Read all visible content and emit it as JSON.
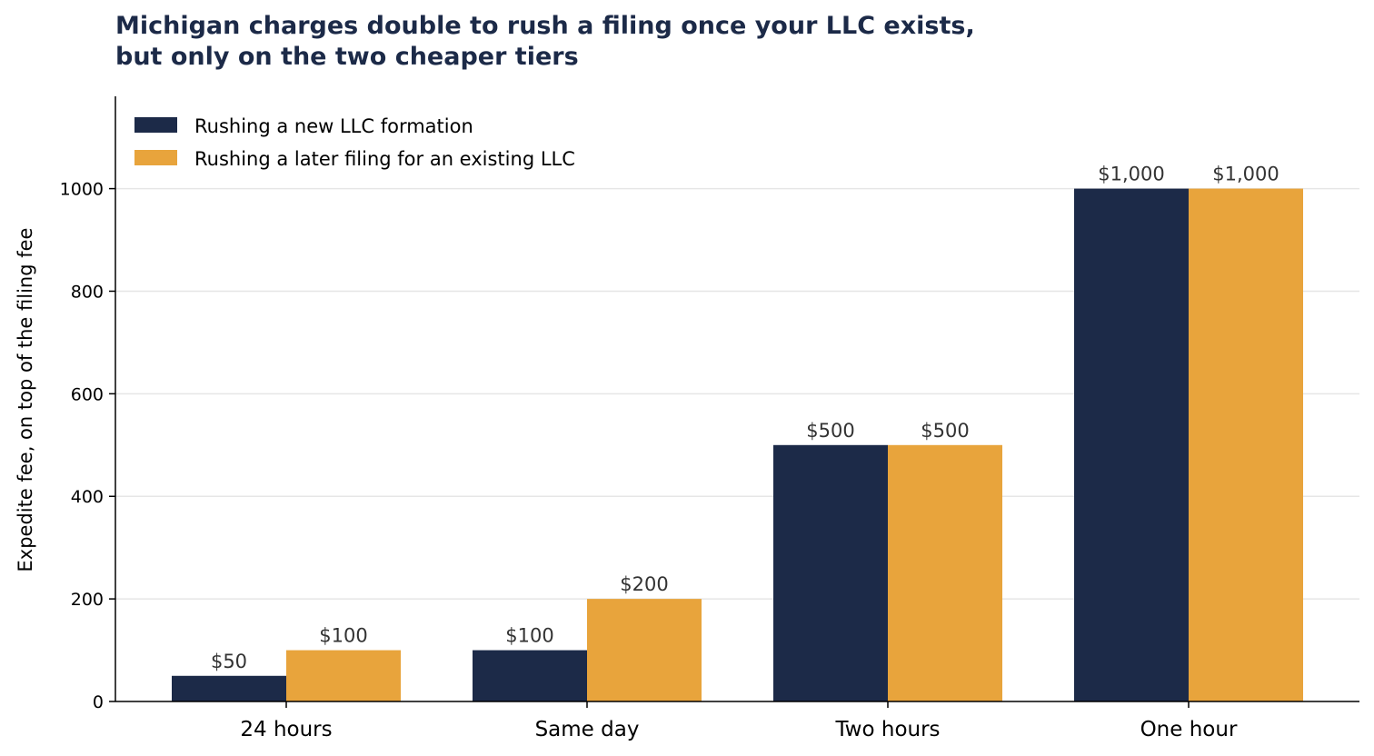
{
  "chart_data": {
    "type": "bar",
    "title_lines": [
      "Michigan charges double to rush a filing once your LLC exists,",
      "but only on the two cheaper tiers"
    ],
    "xlabel": "",
    "ylabel": "Expedite fee, on top of the filing fee",
    "categories": [
      "24 hours",
      "Same day",
      "Two hours",
      "One hour"
    ],
    "series": [
      {
        "name": "Rushing a new LLC formation",
        "color": "#1c2a48",
        "values": [
          50,
          100,
          500,
          1000
        ],
        "labels": [
          "$50",
          "$100",
          "$500",
          "$1,000"
        ]
      },
      {
        "name": "Rushing a later filing for an existing LLC",
        "color": "#e8a43c",
        "values": [
          100,
          200,
          500,
          1000
        ],
        "labels": [
          "$100",
          "$200",
          "$500",
          "$1,000"
        ]
      }
    ],
    "ylim": [
      0,
      1180
    ],
    "yticks": [
      0,
      200,
      400,
      600,
      800,
      1000
    ],
    "grid": true,
    "legend_position": "top-left"
  }
}
